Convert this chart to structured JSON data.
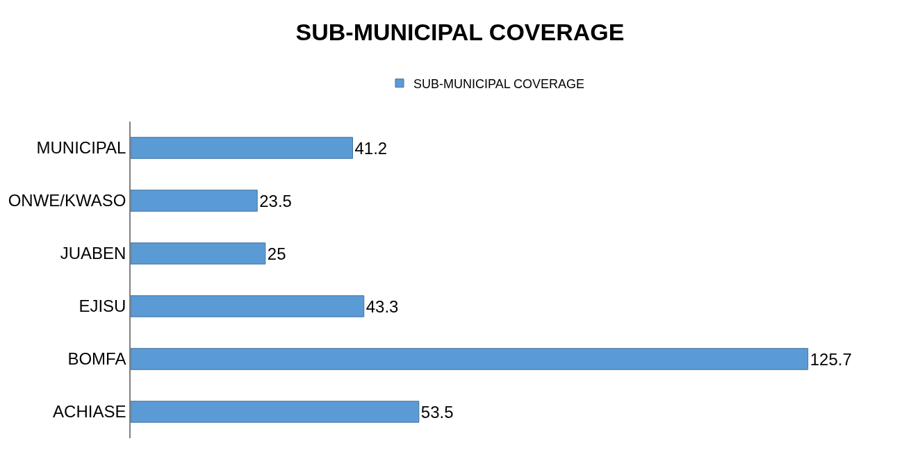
{
  "chart_data": {
    "type": "bar",
    "orientation": "horizontal",
    "title": "SUB-MUNICIPAL COVERAGE",
    "categories": [
      "MUNICIPAL",
      "ONWE/KWASO",
      "JUABEN",
      "EJISU",
      "BOMFA",
      "ACHIASE"
    ],
    "series": [
      {
        "name": "SUB-MUNICIPAL COVERAGE",
        "color": "#5b9bd5",
        "values": [
          41.2,
          23.5,
          25,
          43.3,
          125.7,
          53.5
        ]
      }
    ],
    "data_labels": true,
    "legend": "top"
  }
}
